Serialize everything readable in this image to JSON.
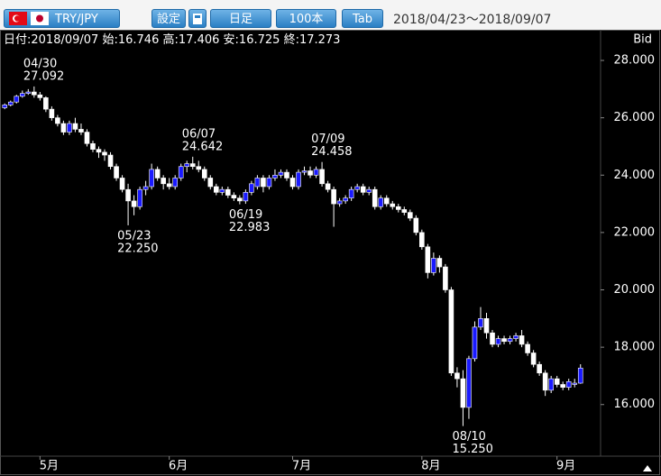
{
  "toolbar": {
    "pair": "TRY/JPY",
    "settings": "設定",
    "period": "日足",
    "count": "100本",
    "tab": "Tab",
    "range": "2018/04/23～2018/09/07"
  },
  "header": {
    "date_label": "日付:",
    "date": "2018/09/07",
    "open_label": "始:",
    "high_label": "高:",
    "low_label": "安:",
    "close_label": "終:"
  },
  "chart_data": {
    "type": "candlestick",
    "y_label": "Bid",
    "up_color": "#1a1aff",
    "down_color": "#ffffff",
    "wick_color": "#ffffff",
    "ylim": [
      14.2,
      29.07
    ],
    "yticks": [
      {
        "value": 16,
        "label": "16.000"
      },
      {
        "value": 18,
        "label": "18.000"
      },
      {
        "value": 20,
        "label": "20.000"
      },
      {
        "value": 22,
        "label": "22.000"
      },
      {
        "value": 24,
        "label": "24.000"
      },
      {
        "value": 26,
        "label": "26.000"
      },
      {
        "value": 28,
        "label": "28.000"
      }
    ],
    "xticks": [
      {
        "value": 6,
        "label": "5月"
      },
      {
        "value": 28,
        "label": "6月"
      },
      {
        "value": 49,
        "label": "7月"
      },
      {
        "value": 71,
        "label": "8月"
      },
      {
        "value": 94,
        "label": "9月"
      }
    ],
    "open": [
      26.35,
      26.45,
      26.55,
      26.75,
      26.85,
      26.9,
      26.8,
      26.7,
      26.3,
      26.0,
      25.8,
      25.5,
      25.8,
      25.6,
      25.5,
      25.1,
      24.9,
      24.8,
      24.7,
      24.3,
      23.9,
      23.5,
      23.1,
      22.9,
      23.5,
      23.6,
      24.2,
      23.9,
      23.7,
      23.6,
      23.9,
      24.3,
      24.4,
      24.3,
      24.2,
      23.9,
      23.6,
      23.4,
      23.5,
      23.3,
      23.2,
      23.1,
      23.4,
      23.6,
      23.9,
      23.6,
      23.9,
      24.0,
      24.1,
      23.9,
      23.6,
      24.1,
      24.15,
      24.0,
      24.2,
      23.7,
      23.5,
      23.0,
      23.1,
      23.2,
      23.5,
      23.6,
      23.4,
      23.5,
      22.9,
      23.2,
      23.0,
      22.9,
      22.8,
      22.7,
      22.5,
      22.0,
      21.5,
      20.6,
      21.1,
      20.8,
      20.0,
      17.1,
      16.9,
      15.9,
      17.6,
      18.7,
      19.0,
      18.5,
      18.1,
      18.3,
      18.2,
      18.3,
      18.4,
      18.1,
      17.8,
      17.4,
      17.1,
      16.5,
      16.9,
      16.7,
      16.6,
      16.7,
      16.746
    ],
    "high": [
      26.5,
      26.6,
      26.8,
      26.95,
      27.0,
      27.092,
      26.9,
      26.75,
      26.4,
      26.1,
      25.9,
      25.9,
      26.0,
      25.8,
      25.6,
      25.2,
      25.0,
      24.9,
      24.8,
      24.4,
      24.0,
      23.7,
      23.3,
      23.6,
      23.8,
      24.4,
      24.3,
      24.0,
      23.9,
      24.0,
      24.4,
      24.5,
      24.642,
      24.5,
      24.3,
      24.0,
      23.7,
      23.6,
      23.6,
      23.4,
      23.3,
      23.5,
      23.8,
      24.0,
      24.0,
      24.0,
      24.2,
      24.2,
      24.2,
      24.0,
      24.2,
      24.3,
      24.3,
      24.3,
      24.458,
      23.8,
      23.6,
      23.2,
      23.3,
      23.6,
      23.7,
      23.7,
      23.6,
      23.6,
      23.3,
      23.3,
      23.1,
      23.0,
      22.9,
      22.8,
      22.6,
      22.1,
      21.6,
      21.3,
      21.2,
      20.9,
      20.1,
      17.3,
      17.2,
      17.7,
      18.9,
      19.4,
      19.2,
      18.6,
      18.4,
      18.4,
      18.4,
      18.5,
      18.6,
      18.2,
      17.9,
      17.5,
      17.2,
      17.0,
      17.0,
      16.8,
      16.9,
      16.9,
      17.406
    ],
    "low": [
      26.3,
      26.4,
      26.5,
      26.7,
      26.8,
      26.7,
      26.6,
      26.2,
      25.9,
      25.7,
      25.4,
      25.4,
      25.5,
      25.4,
      25.0,
      24.8,
      24.6,
      24.5,
      24.2,
      23.8,
      23.4,
      22.25,
      22.6,
      22.8,
      23.3,
      23.5,
      23.8,
      23.5,
      23.5,
      23.5,
      23.8,
      24.1,
      24.2,
      24.1,
      23.8,
      23.5,
      23.3,
      23.3,
      23.2,
      23.1,
      22.983,
      23.0,
      23.3,
      23.5,
      23.4,
      23.5,
      23.8,
      23.9,
      23.8,
      23.5,
      23.5,
      24.0,
      23.9,
      23.9,
      23.6,
      23.4,
      22.2,
      22.9,
      23.0,
      23.1,
      23.4,
      23.3,
      23.3,
      22.8,
      22.8,
      22.9,
      22.8,
      22.7,
      22.6,
      22.4,
      21.9,
      21.4,
      20.4,
      20.5,
      20.6,
      19.9,
      17.0,
      16.6,
      15.25,
      15.5,
      17.5,
      18.6,
      18.3,
      18.0,
      18.0,
      18.1,
      18.1,
      18.2,
      18.0,
      17.7,
      17.3,
      17.0,
      16.3,
      16.4,
      16.6,
      16.5,
      16.5,
      16.6,
      16.725
    ],
    "close": [
      26.45,
      26.55,
      26.75,
      26.85,
      26.9,
      26.8,
      26.7,
      26.3,
      26.0,
      25.8,
      25.5,
      25.8,
      25.6,
      25.5,
      25.1,
      24.9,
      24.8,
      24.7,
      24.3,
      23.9,
      23.5,
      23.1,
      22.9,
      23.5,
      23.6,
      24.2,
      23.9,
      23.7,
      23.6,
      23.9,
      24.3,
      24.4,
      24.3,
      24.2,
      23.9,
      23.6,
      23.4,
      23.5,
      23.3,
      23.2,
      23.1,
      23.4,
      23.7,
      23.9,
      23.6,
      23.9,
      24.0,
      24.1,
      23.9,
      23.6,
      24.1,
      24.15,
      24.0,
      24.2,
      23.7,
      23.5,
      23.0,
      23.1,
      23.2,
      23.5,
      23.6,
      23.4,
      23.5,
      22.9,
      23.2,
      23.0,
      22.9,
      22.8,
      22.7,
      22.5,
      22.0,
      21.5,
      20.6,
      21.1,
      20.8,
      20.0,
      17.1,
      16.9,
      15.9,
      17.6,
      18.7,
      19.0,
      18.5,
      18.1,
      18.3,
      18.2,
      18.3,
      18.4,
      18.1,
      17.8,
      17.4,
      17.1,
      16.5,
      16.9,
      16.7,
      16.6,
      16.8,
      16.746,
      17.273
    ],
    "annotations": [
      {
        "date": "04/30",
        "value": 27.092,
        "label": "27.092"
      },
      {
        "date": "05/23",
        "value": 22.25,
        "label": "22.250"
      },
      {
        "date": "06/07",
        "value": 24.642,
        "label": "24.642"
      },
      {
        "date": "06/19",
        "value": 22.983,
        "label": "22.983"
      },
      {
        "date": "07/09",
        "value": 24.458,
        "label": "24.458"
      },
      {
        "date": "08/10",
        "value": 15.25,
        "label": "15.250"
      }
    ]
  }
}
